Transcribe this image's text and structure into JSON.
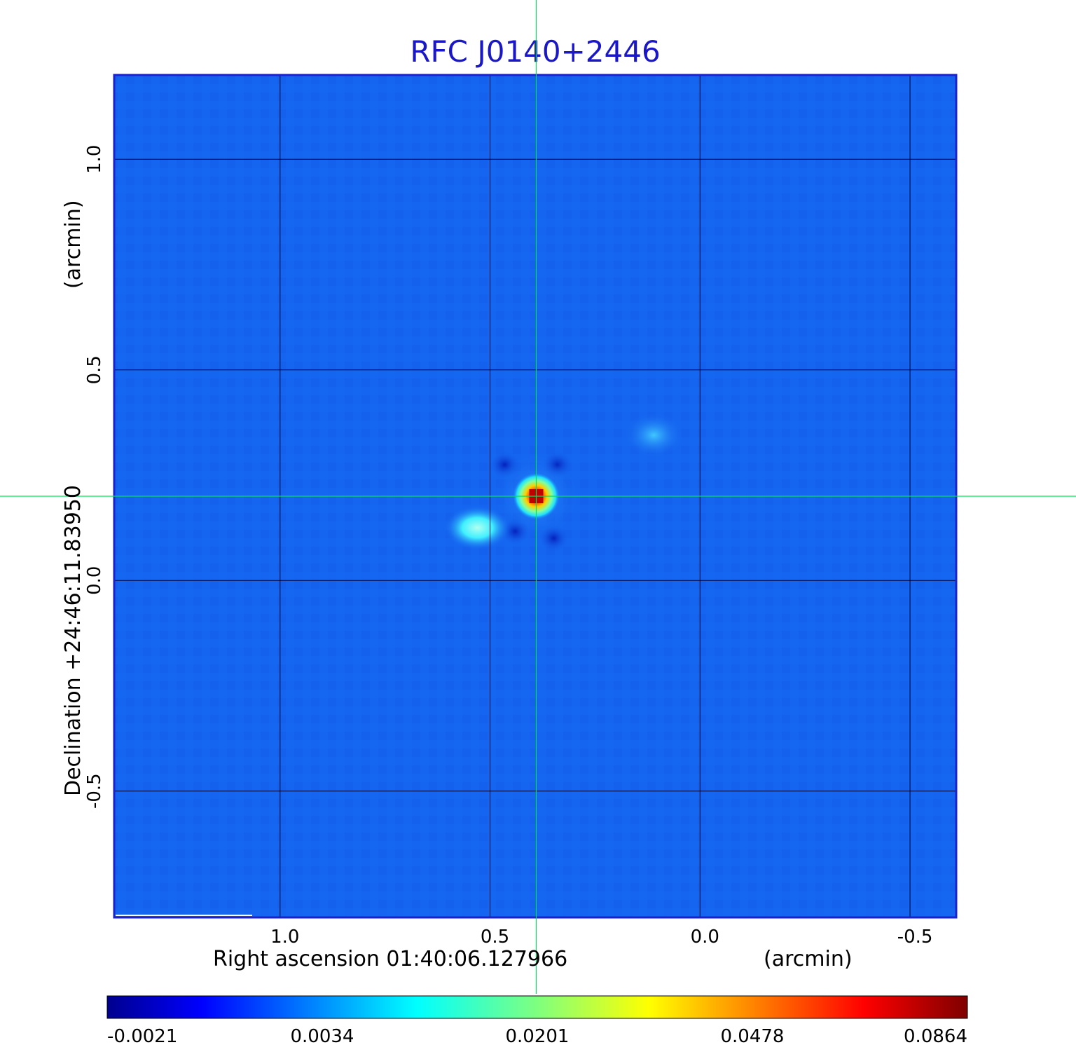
{
  "chart_data": {
    "type": "heatmap",
    "title": "RFC J0140+2446",
    "xlabel": "Right ascension  01:40:06.127966",
    "xlabel_unit": "(arcmin)",
    "ylabel": "Declination  +24:46:11.83950",
    "ylabel_unit": "(arcmin)",
    "x_ticks": [
      "1.0",
      "0.5",
      "0.0",
      "-0.5"
    ],
    "x_tick_values": [
      1.0,
      0.5,
      0.0,
      -0.5
    ],
    "y_ticks": [
      "1.0",
      "0.5",
      "0.0",
      "-0.5"
    ],
    "y_tick_values": [
      1.0,
      0.5,
      0.0,
      -0.5
    ],
    "xlim": [
      1.395,
      -0.61
    ],
    "ylim": [
      -0.8,
      1.2
    ],
    "grid": true,
    "crosshair": {
      "x": 0.39,
      "y": 0.2
    },
    "colorbar": {
      "ticks": [
        "-0.0021",
        "0.0034",
        "0.0201",
        "0.0478",
        "0.0864"
      ],
      "colormap": "jet"
    },
    "sources": [
      {
        "x": 0.39,
        "y": 0.2,
        "peak": 0.0864
      },
      {
        "x": 0.53,
        "y": 0.125,
        "peak": 0.0201
      },
      {
        "x": 0.11,
        "y": 0.345,
        "peak": 0.0034
      }
    ],
    "background_color": "#1565f0",
    "crosshair_color": "#00e05a",
    "grid_color": "#000033",
    "title_color": "#1a17c8"
  }
}
